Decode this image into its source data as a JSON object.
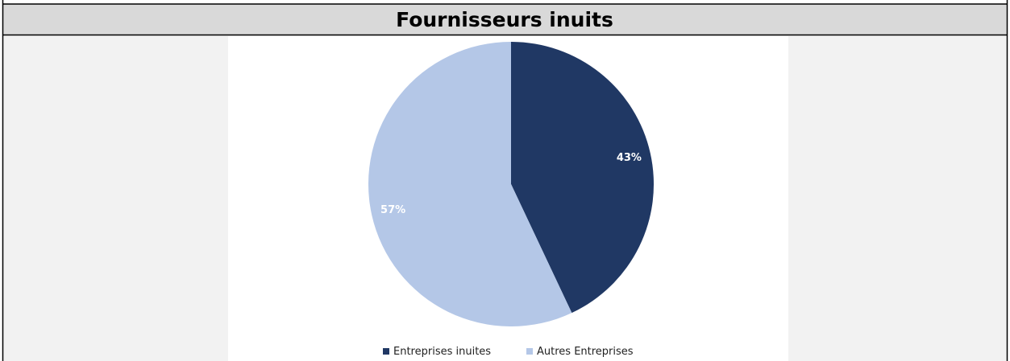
{
  "chart_data": {
    "type": "pie",
    "title": "Fournisseurs inuits",
    "categories": [
      "Entreprises inuites",
      "Autres Entreprises"
    ],
    "values": [
      43,
      57
    ],
    "value_labels": [
      "43%",
      "57%"
    ],
    "colors": [
      "#203864",
      "#b4c7e7"
    ],
    "legend": "bottom"
  }
}
